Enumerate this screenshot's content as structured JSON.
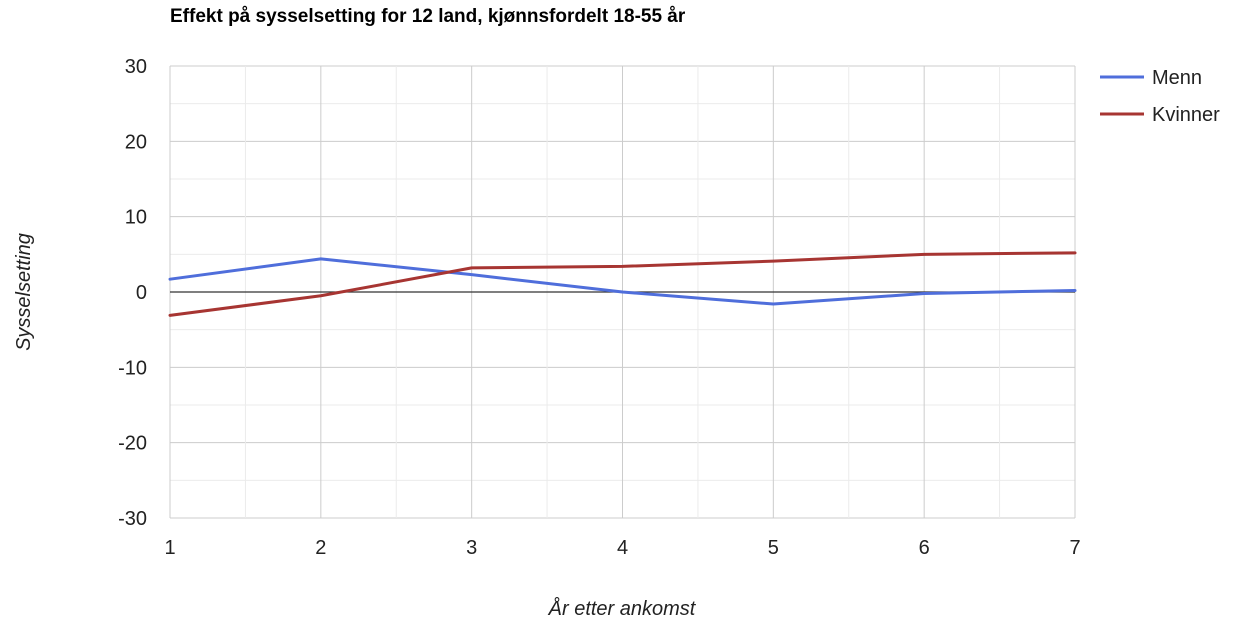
{
  "chart_data": {
    "type": "line",
    "title": "Effekt på sysselsetting for 12 land, kjønnsfordelt 18-55 år",
    "xlabel": "År etter ankomst",
    "ylabel": "Sysselsetting",
    "x": [
      1,
      2,
      3,
      4,
      5,
      6,
      7
    ],
    "xlim": [
      1,
      7
    ],
    "ylim": [
      -30,
      30
    ],
    "yticks": [
      30,
      20,
      10,
      0,
      -10,
      -20,
      -30
    ],
    "yticks_labels": [
      "30",
      "20",
      "10",
      "0",
      "-10",
      "-20",
      "-30"
    ],
    "xticks_labels": [
      "1",
      "2",
      "3",
      "4",
      "5",
      "6",
      "7"
    ],
    "grid": true,
    "legend_position": "top-right",
    "series": [
      {
        "name": "Menn",
        "color": "#4f6edb",
        "values": [
          1.7,
          4.4,
          2.3,
          0.0,
          -1.6,
          -0.2,
          0.2
        ]
      },
      {
        "name": "Kvinner",
        "color": "#a73532",
        "values": [
          -3.1,
          -0.5,
          3.2,
          3.4,
          4.1,
          5.0,
          5.2
        ]
      }
    ]
  }
}
